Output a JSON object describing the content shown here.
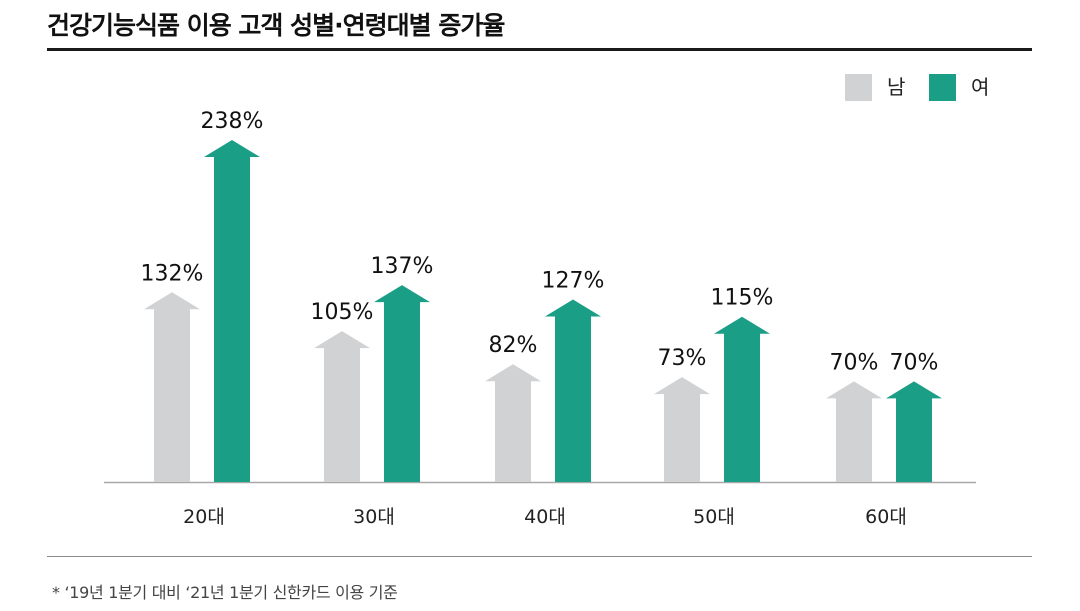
{
  "header": {
    "title": "건강기능식품 이용 고객 성별·연령대별 증가율"
  },
  "legend": {
    "items": [
      {
        "label": "남",
        "color": "#d1d2d4"
      },
      {
        "label": "여",
        "color": "#1a9e86"
      }
    ]
  },
  "footnote": "* ‘19년 1분기 대비 ‘21년 1분기 신한카드 이용 기준",
  "chart_data": {
    "type": "bar",
    "title": "건강기능식품 이용 고객 성별·연령대별 증가율",
    "categories": [
      "20대",
      "30대",
      "40대",
      "50대",
      "60대"
    ],
    "series": [
      {
        "name": "남",
        "values": [
          132,
          105,
          82,
          73,
          70
        ],
        "labels": [
          "132%",
          "105%",
          "82%",
          "73%",
          "70%"
        ],
        "color": "#d1d2d4"
      },
      {
        "name": "여",
        "values": [
          238,
          137,
          127,
          115,
          70
        ],
        "labels": [
          "238%",
          "137%",
          "127%",
          "115%",
          "70%"
        ],
        "color": "#1a9e86"
      }
    ],
    "unit": "%",
    "ylim": [
      0,
      260
    ],
    "grid": false,
    "legend_position": "top-right",
    "bar_style": "upward-arrow"
  }
}
